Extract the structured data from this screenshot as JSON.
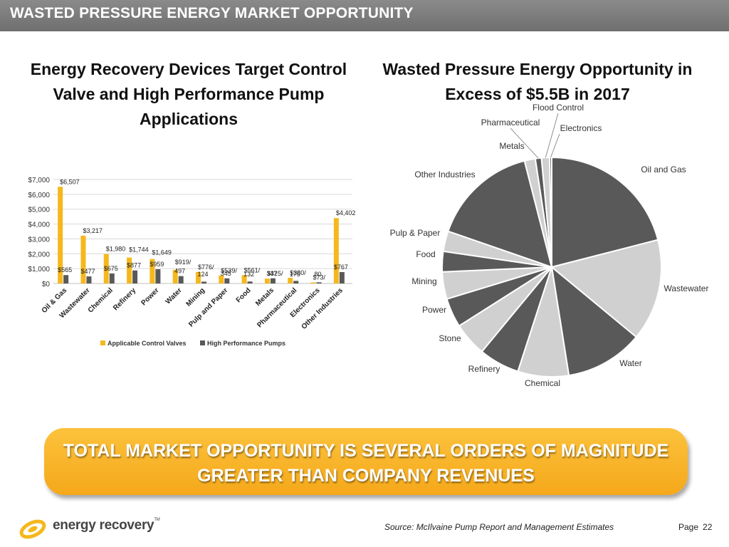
{
  "header": {
    "title": "WASTED PRESSURE ENERGY MARKET OPPORTUNITY"
  },
  "chart_data": [
    {
      "type": "bar",
      "title": "Energy Recovery Devices Target Control Valve and High Performance Pump Applications",
      "categories": [
        "Oil & Gas",
        "Wastewater",
        "Chemical",
        "Refinery",
        "Power",
        "Water",
        "Mining",
        "Pulp and Paper",
        "Food",
        "Metals",
        "Pharmaceutical",
        "Electronics",
        "Other Industries"
      ],
      "series": [
        {
          "name": "Applicable Control Valves",
          "color": "#f5b81c",
          "values": [
            6507,
            3217,
            1980,
            1744,
            1649,
            919,
            776,
            539,
            561,
            325,
            380,
            73,
            4402
          ]
        },
        {
          "name": "High Performance Pumps",
          "color": "#595959",
          "values": [
            565,
            477,
            675,
            877,
            959,
            497,
            124,
            345,
            132,
            347,
            175,
            80,
            767
          ]
        }
      ],
      "labels_a": [
        "$6,507",
        "$3,217",
        "$1,980",
        "$1,744",
        "$1,649",
        "$919/",
        "$776/",
        "$539/",
        "$561/",
        "$325/",
        "$380/",
        "$73/",
        "$4,402"
      ],
      "labels_b": [
        "$565",
        "$477",
        "$675",
        "$877",
        "$959",
        "497",
        "124",
        "345",
        "132",
        "347",
        "175",
        "80",
        "$767"
      ],
      "yticks": [
        "$0",
        "$1,000",
        "$2,000",
        "$3,000",
        "$4,000",
        "$5,000",
        "$6,000",
        "$7,000"
      ],
      "ylim": [
        0,
        7000
      ],
      "grid": true,
      "legend_position": "bottom"
    },
    {
      "type": "pie",
      "title": "Wasted Pressure Energy Opportunity in Excess of $5.5B in 2017",
      "slices": [
        {
          "label": "Oil and Gas",
          "value": 21.0,
          "color": "#595959"
        },
        {
          "label": "Wastewater",
          "value": 15.0,
          "color": "#d0d0d0"
        },
        {
          "label": "Water",
          "value": 11.5,
          "color": "#595959"
        },
        {
          "label": "Chemical",
          "value": 7.5,
          "color": "#d0d0d0"
        },
        {
          "label": "Refinery",
          "value": 6.0,
          "color": "#595959"
        },
        {
          "label": "Stone",
          "value": 5.0,
          "color": "#d0d0d0"
        },
        {
          "label": "Power",
          "value": 4.3,
          "color": "#595959"
        },
        {
          "label": "Mining",
          "value": 4.0,
          "color": "#d0d0d0"
        },
        {
          "label": "Food",
          "value": 3.0,
          "color": "#595959"
        },
        {
          "label": "Pulp & Paper",
          "value": 3.0,
          "color": "#d0d0d0"
        },
        {
          "label": "Other Industries",
          "value": 15.7,
          "color": "#595959"
        },
        {
          "label": "Metals",
          "value": 1.6,
          "color": "#d0d0d0"
        },
        {
          "label": "Pharmaceutical",
          "value": 0.9,
          "color": "#595959"
        },
        {
          "label": "Flood Control",
          "value": 1.2,
          "color": "#d0d0d0"
        },
        {
          "label": "Electronics",
          "value": 0.3,
          "color": "#595959"
        }
      ]
    }
  ],
  "banner": {
    "line1": "TOTAL MARKET OPPORTUNITY IS SEVERAL ORDERS OF MAGNITUDE",
    "line2": "GREATER THAN COMPANY REVENUES"
  },
  "footer": {
    "source": "Source: McIlvaine Pump Report and Management Estimates",
    "page_label": "Page",
    "page_number": "22",
    "logo_text": "energy recovery",
    "logo_tm": "TM"
  }
}
